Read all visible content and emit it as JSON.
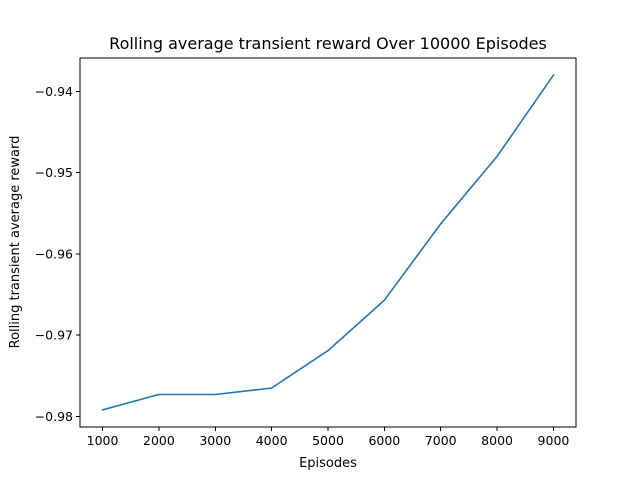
{
  "chart_data": {
    "type": "line",
    "title": "Rolling average transient reward Over 10000 Episodes",
    "xlabel": "Episodes",
    "ylabel": "Rolling transient average reward",
    "x": [
      1000,
      2000,
      3000,
      4000,
      5000,
      6000,
      7000,
      8000,
      9000
    ],
    "series": [
      {
        "values": [
          -0.9792,
          -0.9773,
          -0.9773,
          -0.9765,
          -0.9719,
          -0.9657,
          -0.9563,
          -0.948,
          -0.938
        ],
        "color": "#1f77b4"
      }
    ],
    "xticks": [
      1000,
      2000,
      3000,
      4000,
      5000,
      6000,
      7000,
      8000,
      9000
    ],
    "xtick_labels": [
      "1000",
      "2000",
      "3000",
      "4000",
      "5000",
      "6000",
      "7000",
      "8000",
      "9000"
    ],
    "yticks": [
      -0.98,
      -0.97,
      -0.96,
      -0.95,
      -0.94
    ],
    "ytick_labels": [
      "−0.98",
      "−0.97",
      "−0.96",
      "−0.95",
      "−0.94"
    ],
    "xlim": [
      600,
      9400
    ],
    "ylim": [
      -0.9813,
      -0.9359
    ],
    "grid": false,
    "legend": "none"
  }
}
